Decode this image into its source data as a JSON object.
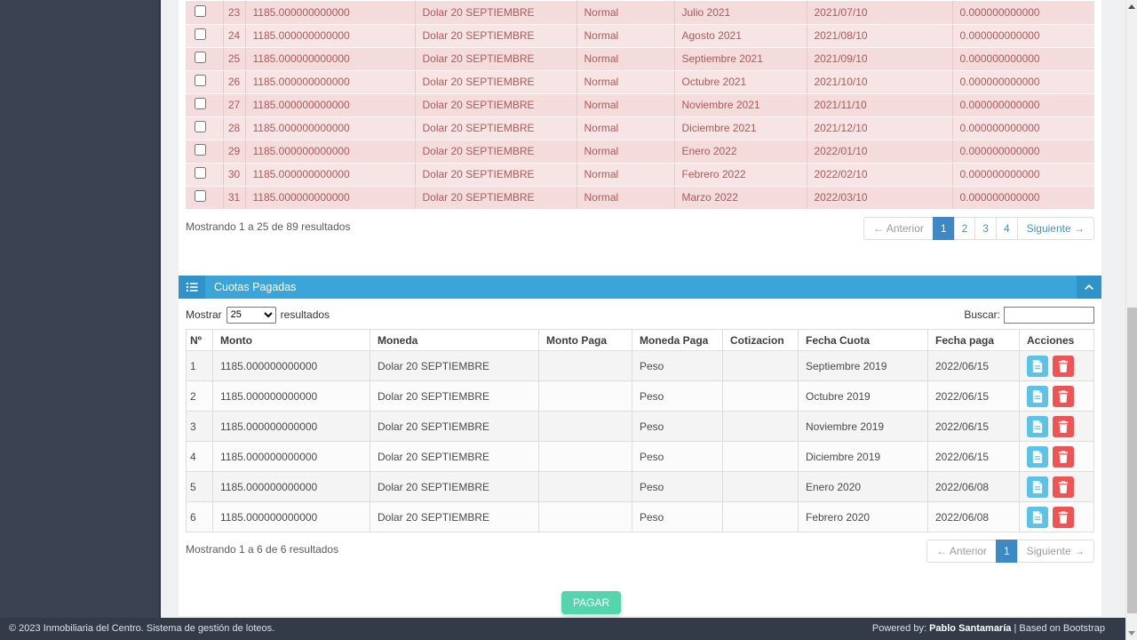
{
  "pending_table": {
    "rows": [
      {
        "n": "23",
        "monto": "1185.000000000000",
        "moneda": "Dolar 20 SEPTIEMBRE",
        "estado": "Normal",
        "mes": "Julio 2021",
        "fecha": "2021/07/10",
        "saldo": "0.000000000000"
      },
      {
        "n": "24",
        "monto": "1185.000000000000",
        "moneda": "Dolar 20 SEPTIEMBRE",
        "estado": "Normal",
        "mes": "Agosto 2021",
        "fecha": "2021/08/10",
        "saldo": "0.000000000000"
      },
      {
        "n": "25",
        "monto": "1185.000000000000",
        "moneda": "Dolar 20 SEPTIEMBRE",
        "estado": "Normal",
        "mes": "Septiembre 2021",
        "fecha": "2021/09/10",
        "saldo": "0.000000000000"
      },
      {
        "n": "26",
        "monto": "1185.000000000000",
        "moneda": "Dolar 20 SEPTIEMBRE",
        "estado": "Normal",
        "mes": "Octubre 2021",
        "fecha": "2021/10/10",
        "saldo": "0.000000000000"
      },
      {
        "n": "27",
        "monto": "1185.000000000000",
        "moneda": "Dolar 20 SEPTIEMBRE",
        "estado": "Normal",
        "mes": "Noviembre 2021",
        "fecha": "2021/11/10",
        "saldo": "0.000000000000"
      },
      {
        "n": "28",
        "monto": "1185.000000000000",
        "moneda": "Dolar 20 SEPTIEMBRE",
        "estado": "Normal",
        "mes": "Diciembre 2021",
        "fecha": "2021/12/10",
        "saldo": "0.000000000000"
      },
      {
        "n": "29",
        "monto": "1185.000000000000",
        "moneda": "Dolar 20 SEPTIEMBRE",
        "estado": "Normal",
        "mes": "Enero 2022",
        "fecha": "2022/01/10",
        "saldo": "0.000000000000"
      },
      {
        "n": "30",
        "monto": "1185.000000000000",
        "moneda": "Dolar 20 SEPTIEMBRE",
        "estado": "Normal",
        "mes": "Febrero 2022",
        "fecha": "2022/02/10",
        "saldo": "0.000000000000"
      },
      {
        "n": "31",
        "monto": "1185.000000000000",
        "moneda": "Dolar 20 SEPTIEMBRE",
        "estado": "Normal",
        "mes": "Marzo 2022",
        "fecha": "2022/03/10",
        "saldo": "0.000000000000"
      }
    ],
    "summary": "Mostrando 1 a 25 de 89 resultados",
    "pagination": {
      "prev": "← Anterior",
      "next": "Siguiente →",
      "pages": [
        "1",
        "2",
        "3",
        "4"
      ],
      "active": "1",
      "prev_enabled": false,
      "next_enabled": true
    }
  },
  "paid_panel": {
    "title": "Cuotas Pagadas",
    "length_label_before": "Mostrar",
    "length_value": "25",
    "length_label_after": "resultados",
    "search_label": "Buscar:",
    "search_value": "",
    "headers": [
      "Nº",
      "Monto",
      "Moneda",
      "Monto Paga",
      "Moneda Paga",
      "Cotizacion",
      "Fecha Cuota",
      "Fecha paga",
      "Acciones"
    ],
    "rows": [
      {
        "n": "1",
        "monto": "1185.000000000000",
        "moneda": "Dolar 20 SEPTIEMBRE",
        "monto_paga": "",
        "moneda_paga": "Peso",
        "cotizacion": "",
        "fecha_cuota": "Septiembre 2019",
        "fecha_paga": "2022/06/15"
      },
      {
        "n": "2",
        "monto": "1185.000000000000",
        "moneda": "Dolar 20 SEPTIEMBRE",
        "monto_paga": "",
        "moneda_paga": "Peso",
        "cotizacion": "",
        "fecha_cuota": "Octubre 2019",
        "fecha_paga": "2022/06/15"
      },
      {
        "n": "3",
        "monto": "1185.000000000000",
        "moneda": "Dolar 20 SEPTIEMBRE",
        "monto_paga": "",
        "moneda_paga": "Peso",
        "cotizacion": "",
        "fecha_cuota": "Noviembre 2019",
        "fecha_paga": "2022/06/15"
      },
      {
        "n": "4",
        "monto": "1185.000000000000",
        "moneda": "Dolar 20 SEPTIEMBRE",
        "monto_paga": "",
        "moneda_paga": "Peso",
        "cotizacion": "",
        "fecha_cuota": "Diciembre 2019",
        "fecha_paga": "2022/06/15"
      },
      {
        "n": "5",
        "monto": "1185.000000000000",
        "moneda": "Dolar 20 SEPTIEMBRE",
        "monto_paga": "",
        "moneda_paga": "Peso",
        "cotizacion": "",
        "fecha_cuota": "Enero 2020",
        "fecha_paga": "2022/06/08"
      },
      {
        "n": "6",
        "monto": "1185.000000000000",
        "moneda": "Dolar 20 SEPTIEMBRE",
        "monto_paga": "",
        "moneda_paga": "Peso",
        "cotizacion": "",
        "fecha_cuota": "Febrero 2020",
        "fecha_paga": "2022/06/08"
      }
    ],
    "summary": "Mostrando 1 a 6 de 6 resultados",
    "pagination": {
      "prev": "← Anterior",
      "next": "Siguiente →",
      "pages": [
        "1"
      ],
      "active": "1",
      "prev_enabled": false,
      "next_enabled": false
    }
  },
  "actions": {
    "pagar_label": "PAGAR"
  },
  "icons": {
    "panel_header_left": "list-icon",
    "panel_header_right": "chevron-up-icon",
    "row_action_1": "file-pdf-icon",
    "row_action_2": "trash-icon"
  },
  "colors": {
    "sidebar": "#3a4150",
    "panel_header": "#3ba5da",
    "pending_row_text": "#ab5a59",
    "action_blue": "#5cc3e8",
    "action_red": "#f05353",
    "pagar_green": "#54d5ac",
    "pagination_active": "#3d89c5"
  },
  "footer": {
    "left": "© 2023 Inmobiliaria del Centro. Sistema de gestión de loteos.",
    "powered_prefix": "Powered by: ",
    "powered_name": "Pablo Santamaría",
    "powered_suffix": " | Based on Bootstrap"
  }
}
